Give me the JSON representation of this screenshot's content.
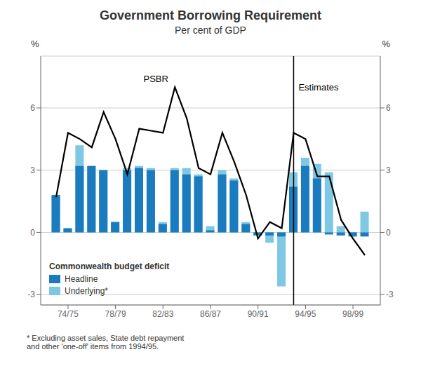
{
  "chart_data": {
    "type": "bar",
    "title": "Government Borrowing Requirement",
    "subtitle": "Per cent of GDP",
    "footnote": "* Excluding asset sales, State debt repayment\nand other 'one-off' items from 1994/95.",
    "ylabel": "%",
    "y2label": "%",
    "x": [
      1973.5,
      1974.5,
      1975.5,
      1976.5,
      1977.5,
      1978.5,
      1979.5,
      1980.5,
      1981.5,
      1982.5,
      1983.5,
      1984.5,
      1985.5,
      1986.5,
      1987.5,
      1988.5,
      1989.5,
      1990.5,
      1991.5,
      1992.5,
      1993.5,
      1994.5,
      1995.5,
      1996.5,
      1997.5,
      1998.5,
      1999.5
    ],
    "xlim": [
      1972.2,
      2000.8
    ],
    "xticks": [
      {
        "value": 1974.5,
        "label": "74/75"
      },
      {
        "value": 1978.5,
        "label": "78/79"
      },
      {
        "value": 1982.5,
        "label": "82/83"
      },
      {
        "value": 1986.5,
        "label": "86/87"
      },
      {
        "value": 1990.5,
        "label": "90/91"
      },
      {
        "value": 1994.5,
        "label": "94/95"
      },
      {
        "value": 1998.5,
        "label": "98/99"
      }
    ],
    "ylim": [
      -3.5,
      8.5
    ],
    "yticks": [
      -3,
      0,
      3,
      6
    ],
    "y2lim": [
      -3.5,
      8.5
    ],
    "y2ticks": [
      -3,
      0,
      3,
      6
    ],
    "grid": true,
    "legend": "lower left",
    "legend_title": "Commonwealth budget deficit",
    "series": [
      {
        "name": "Underlying*",
        "type": "bar",
        "color": "#7ec8e3",
        "values": [
          1.8,
          0.2,
          4.2,
          3.2,
          3.0,
          0.5,
          3.1,
          3.2,
          3.1,
          0.5,
          3.1,
          3.1,
          2.8,
          0.3,
          3.0,
          2.6,
          0.5,
          -0.1,
          -0.5,
          -2.6,
          2.9,
          3.6,
          3.3,
          2.9,
          0.3,
          -0.1,
          1.0
        ]
      },
      {
        "name": "Headline",
        "type": "bar",
        "color": "#1b7bbf",
        "values": [
          1.8,
          0.2,
          3.2,
          3.2,
          3.0,
          0.5,
          3.0,
          3.1,
          3.0,
          0.4,
          3.0,
          2.8,
          2.7,
          0.1,
          2.8,
          2.5,
          0.4,
          -0.15,
          -0.15,
          -0.2,
          2.2,
          3.2,
          2.6,
          -0.1,
          -0.15,
          -0.2,
          -0.2
        ]
      },
      {
        "name": "PSBR",
        "type": "line",
        "color": "#000000",
        "values": [
          1.7,
          4.8,
          4.5,
          4.1,
          5.8,
          4.5,
          2.8,
          5.0,
          4.9,
          4.8,
          7.0,
          5.5,
          3.1,
          2.8,
          4.8,
          3.4,
          1.8,
          -0.3,
          0.5,
          0.2,
          4.8,
          4.5,
          2.7,
          2.7,
          0.6,
          -0.3,
          -1.1
        ]
      }
    ],
    "annotations": [
      {
        "type": "text",
        "text": "PSBR",
        "x": 1980.8,
        "y": 7.4
      },
      {
        "type": "vline",
        "text": "Estimates",
        "x": 1993.5,
        "y": 7.0
      }
    ]
  }
}
